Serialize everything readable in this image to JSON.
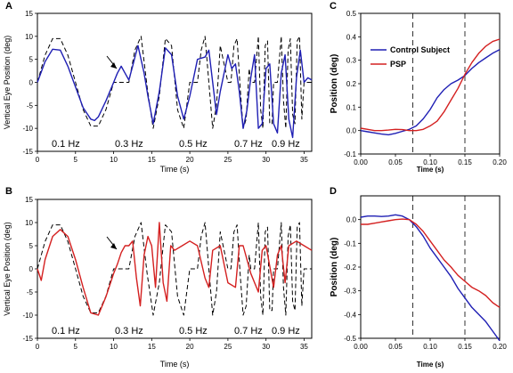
{
  "colors": {
    "control": "#1f1fb4",
    "psp": "#d42020",
    "target": "#000000"
  },
  "chart_data": [
    {
      "id": "A",
      "type": "line",
      "panel_label": "A",
      "xlabel": "Time (s)",
      "ylabel": "Vertical Eye Position (deg)",
      "xlim": [
        0,
        36
      ],
      "ylim": [
        -15,
        15
      ],
      "xticks": [
        "0",
        "5",
        "10",
        "15",
        "20",
        "25",
        "30",
        "35"
      ],
      "yticks": [
        "15",
        "10",
        "5",
        "0",
        "-5",
        "-10",
        "-15"
      ],
      "frequency_labels": [
        "0.1 Hz",
        "0.3 Hz",
        "0.5 Hz",
        "0.7 Hz",
        "0.9 Hz"
      ],
      "series": [
        {
          "style": "target-dashed",
          "color": "#000000",
          "x": [
            0,
            1,
            2,
            3,
            4,
            5,
            6,
            7,
            8,
            9,
            10,
            11,
            12,
            12.8,
            13.6,
            14.4,
            15.2,
            16,
            16.8,
            17.6,
            18.4,
            19.2,
            20,
            21,
            21.5,
            22,
            22.5,
            23,
            23.5,
            24,
            25,
            25.4,
            25.8,
            26.2,
            26.6,
            27,
            27.4,
            27.8,
            28,
            28.5,
            29,
            29.3,
            29.6,
            29.9,
            30.2,
            30.5,
            30.8,
            31,
            31.5,
            32,
            32.3,
            32.6,
            32.9,
            33.2,
            33.5,
            33.8,
            34.1,
            34.4,
            34.7,
            35,
            35.5,
            36
          ],
          "y": [
            0,
            5.9,
            9.5,
            9.5,
            5.9,
            0,
            -5.9,
            -9.5,
            -9.5,
            -5.9,
            0,
            0,
            0,
            7,
            10,
            -1,
            -10,
            -3,
            9.5,
            8,
            -6,
            -10,
            0,
            0,
            7,
            10,
            0,
            -10,
            -5,
            8,
            0,
            0,
            8,
            9.5,
            -1,
            -10,
            -8,
            3,
            0,
            0,
            10,
            -6,
            -10,
            8,
            9,
            -9,
            -9,
            0,
            0,
            10,
            -4,
            -10,
            7,
            9.5,
            -7,
            -9,
            9,
            10,
            -8,
            0,
            0,
            0
          ]
        },
        {
          "style": "eye-solid",
          "color": "#1f1fb4",
          "x": [
            0,
            1,
            2,
            3,
            4,
            5,
            6,
            7,
            7.5,
            8,
            9,
            10,
            10.5,
            11,
            11.5,
            12,
            12.5,
            13.2,
            14,
            14.5,
            15.2,
            16,
            16.8,
            17.6,
            18.4,
            19.2,
            20,
            21,
            22,
            22.5,
            23,
            23.5,
            24,
            25,
            25.5,
            26,
            26.5,
            27,
            27.5,
            28,
            28.5,
            29,
            29.5,
            30,
            30.5,
            31,
            31.5,
            32,
            32.5,
            33,
            33.5,
            34,
            34.5,
            35,
            35.5,
            36
          ],
          "y": [
            0,
            4.5,
            7.2,
            7,
            3.5,
            -1,
            -5.5,
            -8,
            -8.3,
            -7.5,
            -4,
            0,
            2,
            3.5,
            2,
            0.5,
            3.5,
            8,
            2,
            -3,
            -9,
            -2,
            7.5,
            6,
            -3,
            -8,
            -3,
            5,
            5.5,
            7,
            0,
            -7,
            -2,
            6,
            3,
            4,
            -2,
            -10,
            -6,
            1,
            6,
            -10,
            -9,
            3,
            4,
            -9,
            -11,
            2,
            6,
            -8,
            -12,
            1,
            7,
            0,
            1,
            0.5
          ]
        }
      ]
    },
    {
      "id": "B",
      "type": "line",
      "panel_label": "B",
      "xlabel": "Time (s)",
      "ylabel": "Vertical Eye Position (deg)",
      "xlim": [
        0,
        36
      ],
      "ylim": [
        -15,
        15
      ],
      "xticks": [
        "0",
        "5",
        "10",
        "15",
        "20",
        "25",
        "30",
        "35"
      ],
      "yticks": [
        "15",
        "10",
        "5",
        "0",
        "-5",
        "-10",
        "-15"
      ],
      "frequency_labels": [
        "0.1 Hz",
        "0.3 Hz",
        "0.5 Hz",
        "0.7 Hz",
        "0.9 Hz"
      ],
      "series": [
        {
          "style": "target-dashed",
          "color": "#000000",
          "x": [
            0,
            1,
            2,
            3,
            4,
            5,
            6,
            7,
            8,
            9,
            10,
            11,
            12,
            12.8,
            13.6,
            14.4,
            15.2,
            16,
            16.8,
            17.6,
            18.4,
            19.2,
            20,
            21,
            21.5,
            22,
            22.5,
            23,
            23.5,
            24,
            25,
            25.4,
            25.8,
            26.2,
            26.6,
            27,
            27.4,
            27.8,
            28,
            28.5,
            29,
            29.3,
            29.6,
            29.9,
            30.2,
            30.5,
            30.8,
            31,
            31.5,
            32,
            32.3,
            32.6,
            32.9,
            33.2,
            33.5,
            33.8,
            34.1,
            34.4,
            34.7,
            35,
            35.5,
            36
          ],
          "y": [
            0,
            5.9,
            9.5,
            9.5,
            5.9,
            0,
            -5.9,
            -9.5,
            -9.5,
            -5.9,
            0,
            0,
            0,
            7,
            10,
            -1,
            -10,
            -3,
            9.5,
            8,
            -6,
            -10,
            0,
            0,
            7,
            10,
            0,
            -10,
            -5,
            8,
            0,
            0,
            8,
            9.5,
            -1,
            -10,
            -8,
            3,
            0,
            0,
            10,
            -6,
            -10,
            8,
            9,
            -9,
            -9,
            0,
            0,
            10,
            -4,
            -10,
            7,
            9.5,
            -7,
            -9,
            9,
            10,
            -8,
            0,
            0,
            0
          ]
        },
        {
          "style": "eye-solid",
          "color": "#d42020",
          "x": [
            0,
            0.5,
            1,
            2,
            3,
            4,
            5,
            6,
            7,
            8,
            9,
            10,
            10.5,
            11,
            11.5,
            12,
            12.5,
            13,
            13.5,
            14,
            14.5,
            15,
            15.5,
            16,
            16.5,
            17,
            17.5,
            18,
            19,
            20,
            21,
            22,
            22.5,
            23,
            24,
            25,
            26,
            26.5,
            27,
            28,
            29,
            29.5,
            30,
            31,
            31.5,
            32,
            32.5,
            33,
            34,
            35,
            36
          ],
          "y": [
            0,
            -2.5,
            2,
            7,
            8.5,
            7,
            2,
            -4,
            -9.5,
            -10,
            -6,
            -1,
            1,
            3.5,
            5,
            5,
            6,
            -2,
            -8,
            3,
            7,
            5,
            -4,
            10,
            -3,
            -7,
            5,
            4,
            5,
            6,
            5,
            -2,
            -4,
            4,
            5,
            -3,
            -4,
            5,
            5,
            -1,
            -5,
            4,
            5,
            -4,
            3,
            5,
            -3,
            5,
            6,
            5,
            4
          ]
        }
      ]
    },
    {
      "id": "C",
      "type": "line",
      "panel_label": "C",
      "xlabel": "Time (s)",
      "ylabel": "Position (deg)",
      "xlim": [
        0,
        0.2
      ],
      "ylim": [
        -0.1,
        0.5
      ],
      "xticks": [
        "0.00",
        "0.05",
        "0.10",
        "0.15",
        "0.20"
      ],
      "yticks": [
        "0.5",
        "0.4",
        "0.3",
        "0.2",
        "0.1",
        "0.0",
        "-0.1"
      ],
      "vlines": [
        0.075,
        0.15
      ],
      "legend_position": "upper-left",
      "series": [
        {
          "name": "Control Subject",
          "color": "#1f1fb4",
          "x": [
            0,
            0.01,
            0.02,
            0.03,
            0.04,
            0.05,
            0.06,
            0.07,
            0.08,
            0.09,
            0.1,
            0.11,
            0.12,
            0.13,
            0.14,
            0.15,
            0.16,
            0.17,
            0.18,
            0.19,
            0.2
          ],
          "y": [
            0,
            -0.005,
            -0.01,
            -0.015,
            -0.018,
            -0.012,
            -0.003,
            0.005,
            0.02,
            0.05,
            0.09,
            0.14,
            0.175,
            0.2,
            0.215,
            0.235,
            0.265,
            0.29,
            0.31,
            0.33,
            0.345
          ]
        },
        {
          "name": "PSP",
          "color": "#d42020",
          "x": [
            0,
            0.01,
            0.02,
            0.03,
            0.04,
            0.05,
            0.06,
            0.07,
            0.08,
            0.09,
            0.1,
            0.11,
            0.12,
            0.13,
            0.14,
            0.15,
            0.16,
            0.17,
            0.18,
            0.19,
            0.2
          ],
          "y": [
            0.01,
            0.005,
            0,
            0,
            0.002,
            0.005,
            0.004,
            0,
            0,
            0.005,
            0.02,
            0.04,
            0.08,
            0.13,
            0.18,
            0.24,
            0.29,
            0.33,
            0.36,
            0.38,
            0.39
          ]
        }
      ]
    },
    {
      "id": "D",
      "type": "line",
      "panel_label": "D",
      "xlabel": "Time (s)",
      "ylabel": "Position (deg)",
      "xlim": [
        0,
        0.2
      ],
      "ylim": [
        -0.5,
        0.1
      ],
      "xticks": [
        "0.00",
        "0.05",
        "0.10",
        "0.15",
        "0.20"
      ],
      "yticks": [
        "0.0",
        "-0.1",
        "-0.2",
        "-0.3",
        "-0.4",
        "-0.5"
      ],
      "vlines": [
        0.075,
        0.15
      ],
      "series": [
        {
          "name": "Control Subject",
          "color": "#1f1fb4",
          "x": [
            0,
            0.01,
            0.02,
            0.03,
            0.04,
            0.05,
            0.06,
            0.07,
            0.08,
            0.09,
            0.1,
            0.11,
            0.12,
            0.13,
            0.14,
            0.15,
            0.16,
            0.17,
            0.18,
            0.19,
            0.2
          ],
          "y": [
            0.01,
            0.015,
            0.015,
            0.013,
            0.015,
            0.02,
            0.015,
            0,
            -0.03,
            -0.07,
            -0.12,
            -0.16,
            -0.2,
            -0.24,
            -0.29,
            -0.33,
            -0.37,
            -0.4,
            -0.43,
            -0.47,
            -0.51
          ]
        },
        {
          "name": "PSP",
          "color": "#d42020",
          "x": [
            0,
            0.01,
            0.02,
            0.03,
            0.04,
            0.05,
            0.06,
            0.07,
            0.08,
            0.09,
            0.1,
            0.11,
            0.12,
            0.13,
            0.14,
            0.15,
            0.16,
            0.17,
            0.18,
            0.19,
            0.2
          ],
          "y": [
            -0.02,
            -0.02,
            -0.015,
            -0.01,
            -0.005,
            0,
            0.002,
            0,
            -0.02,
            -0.05,
            -0.09,
            -0.13,
            -0.17,
            -0.2,
            -0.235,
            -0.26,
            -0.285,
            -0.3,
            -0.32,
            -0.35,
            -0.37
          ]
        }
      ]
    }
  ]
}
